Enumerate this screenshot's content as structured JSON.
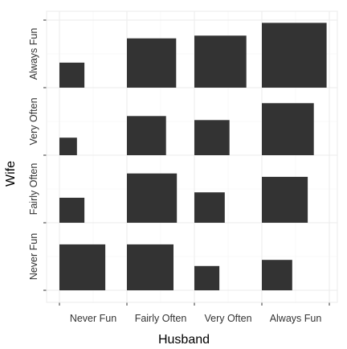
{
  "chart_data": {
    "type": "mosaic",
    "title": "",
    "xlabel": "Husband",
    "ylabel": "Wife",
    "x_categories": [
      "Never Fun",
      "Fairly Often",
      "Very Often",
      "Always Fun"
    ],
    "y_categories": [
      "Never Fun",
      "Fairly Often",
      "Very Often",
      "Always Fun"
    ],
    "cell_max": 1.0,
    "cells": [
      {
        "husband": "Never Fun",
        "wife": "Never Fun",
        "width": 0.68,
        "height": 0.68
      },
      {
        "husband": "Fairly Often",
        "wife": "Never Fun",
        "width": 0.69,
        "height": 0.68
      },
      {
        "husband": "Very Often",
        "wife": "Never Fun",
        "width": 0.37,
        "height": 0.36
      },
      {
        "husband": "Always Fun",
        "wife": "Never Fun",
        "width": 0.45,
        "height": 0.45
      },
      {
        "husband": "Never Fun",
        "wife": "Fairly Often",
        "width": 0.37,
        "height": 0.37
      },
      {
        "husband": "Fairly Often",
        "wife": "Fairly Often",
        "width": 0.74,
        "height": 0.73
      },
      {
        "husband": "Very Often",
        "wife": "Fairly Often",
        "width": 0.45,
        "height": 0.45
      },
      {
        "husband": "Always Fun",
        "wife": "Fairly Often",
        "width": 0.68,
        "height": 0.68
      },
      {
        "husband": "Never Fun",
        "wife": "Very Often",
        "width": 0.26,
        "height": 0.26
      },
      {
        "husband": "Fairly Often",
        "wife": "Very Often",
        "width": 0.58,
        "height": 0.58
      },
      {
        "husband": "Very Often",
        "wife": "Very Often",
        "width": 0.52,
        "height": 0.52
      },
      {
        "husband": "Always Fun",
        "wife": "Very Often",
        "width": 0.77,
        "height": 0.77
      },
      {
        "husband": "Never Fun",
        "wife": "Always Fun",
        "width": 0.37,
        "height": 0.37
      },
      {
        "husband": "Fairly Often",
        "wife": "Always Fun",
        "width": 0.73,
        "height": 0.73
      },
      {
        "husband": "Very Often",
        "wife": "Always Fun",
        "width": 0.77,
        "height": 0.77
      },
      {
        "husband": "Always Fun",
        "wife": "Always Fun",
        "width": 0.96,
        "height": 0.96
      }
    ],
    "grid": true,
    "legend": "none",
    "colors": {
      "cell": "#333333",
      "gridline": "#ebebeb",
      "panel_border": "#ebebeb",
      "axis_text": "#333333",
      "axis_title": "#000000"
    }
  }
}
